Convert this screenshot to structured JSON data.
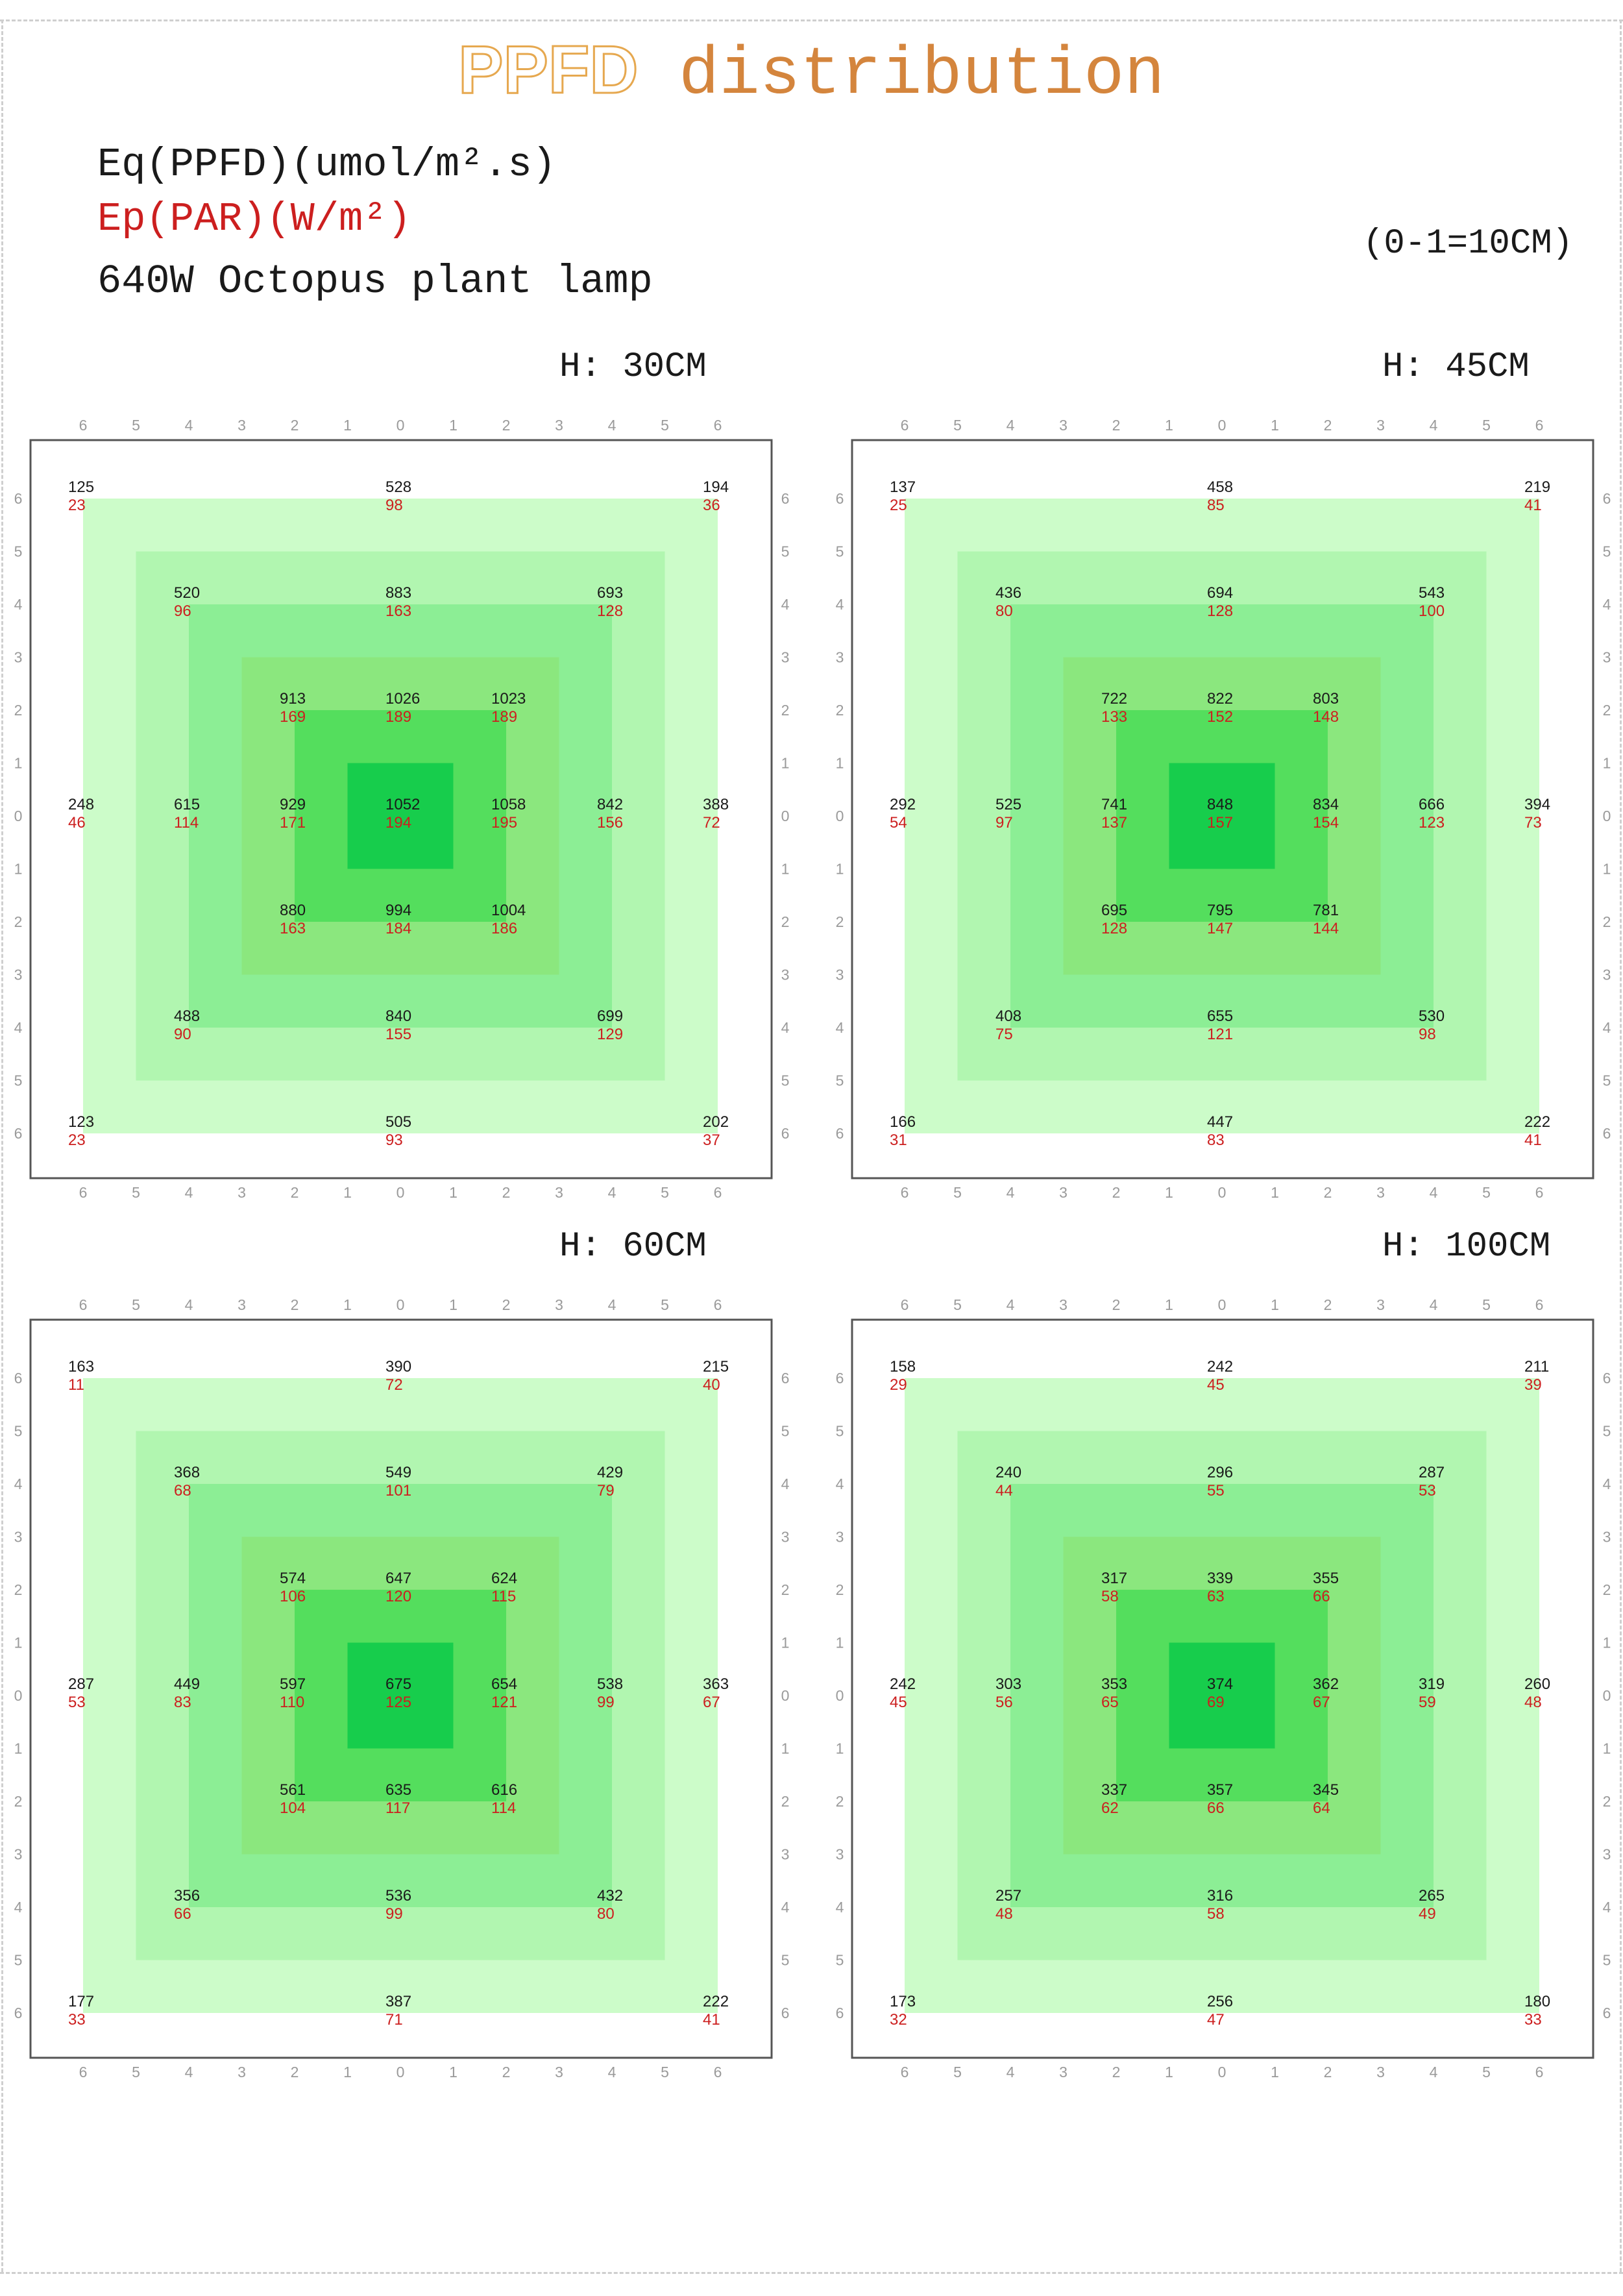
{
  "header": {
    "title_part1": "PPFD",
    "title_part2": " distribution",
    "line_ppfd": "Eq(PPFD)(umol/m².s)",
    "line_par": "Ep(PAR)(W/m²)",
    "line_lamp": "640W Octopus plant lamp",
    "scale_note": "(0-1=10CM)"
  },
  "colors": {
    "title_outline": "#e6a84f",
    "title_text": "#d4853d",
    "ppfd_text": "#1a1a1a",
    "par_text": "#cc1f1f",
    "ring_colors": [
      "#ccfcc9",
      "#b1f6b0",
      "#8cee95",
      "#8be77e",
      "#54de5d",
      "#17cd4c"
    ]
  },
  "chart_data": [
    {
      "type": "heatmap",
      "title": "H: 30CM",
      "x_tick_labels": [
        "6",
        "5",
        "4",
        "3",
        "2",
        "1",
        "0",
        "1",
        "2",
        "3",
        "4",
        "5",
        "6"
      ],
      "y_tick_labels": [
        "6",
        "5",
        "4",
        "3",
        "2",
        "1",
        "0",
        "1",
        "2",
        "3",
        "4",
        "5",
        "6"
      ],
      "points": [
        {
          "x": -6,
          "y": 6,
          "ppfd": 125,
          "par": 23
        },
        {
          "x": 0,
          "y": 6,
          "ppfd": 528,
          "par": 98
        },
        {
          "x": 6,
          "y": 6,
          "ppfd": 194,
          "par": 36
        },
        {
          "x": -4,
          "y": 4,
          "ppfd": 520,
          "par": 96
        },
        {
          "x": 0,
          "y": 4,
          "ppfd": 883,
          "par": 163
        },
        {
          "x": 4,
          "y": 4,
          "ppfd": 693,
          "par": 128
        },
        {
          "x": -2,
          "y": 2,
          "ppfd": 913,
          "par": 169
        },
        {
          "x": 0,
          "y": 2,
          "ppfd": 1026,
          "par": 189
        },
        {
          "x": 2,
          "y": 2,
          "ppfd": 1023,
          "par": 189
        },
        {
          "x": -6,
          "y": 0,
          "ppfd": 248,
          "par": 46
        },
        {
          "x": -4,
          "y": 0,
          "ppfd": 615,
          "par": 114
        },
        {
          "x": -2,
          "y": 0,
          "ppfd": 929,
          "par": 171
        },
        {
          "x": 0,
          "y": 0,
          "ppfd": 1052,
          "par": 194
        },
        {
          "x": 2,
          "y": 0,
          "ppfd": 1058,
          "par": 195
        },
        {
          "x": 4,
          "y": 0,
          "ppfd": 842,
          "par": 156
        },
        {
          "x": 6,
          "y": 0,
          "ppfd": 388,
          "par": 72
        },
        {
          "x": -2,
          "y": -2,
          "ppfd": 880,
          "par": 163
        },
        {
          "x": 0,
          "y": -2,
          "ppfd": 994,
          "par": 184
        },
        {
          "x": 2,
          "y": -2,
          "ppfd": 1004,
          "par": 186
        },
        {
          "x": -4,
          "y": -4,
          "ppfd": 488,
          "par": 90
        },
        {
          "x": 0,
          "y": -4,
          "ppfd": 840,
          "par": 155
        },
        {
          "x": 4,
          "y": -4,
          "ppfd": 699,
          "par": 129
        },
        {
          "x": -6,
          "y": -6,
          "ppfd": 123,
          "par": 23
        },
        {
          "x": 0,
          "y": -6,
          "ppfd": 505,
          "par": 93
        },
        {
          "x": 6,
          "y": -6,
          "ppfd": 202,
          "par": 37
        }
      ]
    },
    {
      "type": "heatmap",
      "title": "H: 45CM",
      "x_tick_labels": [
        "6",
        "5",
        "4",
        "3",
        "2",
        "1",
        "0",
        "1",
        "2",
        "3",
        "4",
        "5",
        "6"
      ],
      "y_tick_labels": [
        "6",
        "5",
        "4",
        "3",
        "2",
        "1",
        "0",
        "1",
        "2",
        "3",
        "4",
        "5",
        "6"
      ],
      "points": [
        {
          "x": -6,
          "y": 6,
          "ppfd": 137,
          "par": 25
        },
        {
          "x": 0,
          "y": 6,
          "ppfd": 458,
          "par": 85
        },
        {
          "x": 6,
          "y": 6,
          "ppfd": 219,
          "par": 41
        },
        {
          "x": -4,
          "y": 4,
          "ppfd": 436,
          "par": 80
        },
        {
          "x": 0,
          "y": 4,
          "ppfd": 694,
          "par": 128
        },
        {
          "x": 4,
          "y": 4,
          "ppfd": 543,
          "par": 100
        },
        {
          "x": -2,
          "y": 2,
          "ppfd": 722,
          "par": 133
        },
        {
          "x": 0,
          "y": 2,
          "ppfd": 822,
          "par": 152
        },
        {
          "x": 2,
          "y": 2,
          "ppfd": 803,
          "par": 148
        },
        {
          "x": -6,
          "y": 0,
          "ppfd": 292,
          "par": 54
        },
        {
          "x": -4,
          "y": 0,
          "ppfd": 525,
          "par": 97
        },
        {
          "x": -2,
          "y": 0,
          "ppfd": 741,
          "par": 137
        },
        {
          "x": 0,
          "y": 0,
          "ppfd": 848,
          "par": 157
        },
        {
          "x": 2,
          "y": 0,
          "ppfd": 834,
          "par": 154
        },
        {
          "x": 4,
          "y": 0,
          "ppfd": 666,
          "par": 123
        },
        {
          "x": 6,
          "y": 0,
          "ppfd": 394,
          "par": 73
        },
        {
          "x": -2,
          "y": -2,
          "ppfd": 695,
          "par": 128
        },
        {
          "x": 0,
          "y": -2,
          "ppfd": 795,
          "par": 147
        },
        {
          "x": 2,
          "y": -2,
          "ppfd": 781,
          "par": 144
        },
        {
          "x": -4,
          "y": -4,
          "ppfd": 408,
          "par": 75
        },
        {
          "x": 0,
          "y": -4,
          "ppfd": 655,
          "par": 121
        },
        {
          "x": 4,
          "y": -4,
          "ppfd": 530,
          "par": 98
        },
        {
          "x": -6,
          "y": -6,
          "ppfd": 166,
          "par": 31
        },
        {
          "x": 0,
          "y": -6,
          "ppfd": 447,
          "par": 83
        },
        {
          "x": 6,
          "y": -6,
          "ppfd": 222,
          "par": 41
        }
      ]
    },
    {
      "type": "heatmap",
      "title": "H: 60CM",
      "x_tick_labels": [
        "6",
        "5",
        "4",
        "3",
        "2",
        "1",
        "0",
        "1",
        "2",
        "3",
        "4",
        "5",
        "6"
      ],
      "y_tick_labels": [
        "6",
        "5",
        "4",
        "3",
        "2",
        "1",
        "0",
        "1",
        "2",
        "3",
        "4",
        "5",
        "6"
      ],
      "points": [
        {
          "x": -6,
          "y": 6,
          "ppfd": 163,
          "par": 11
        },
        {
          "x": 0,
          "y": 6,
          "ppfd": 390,
          "par": 72
        },
        {
          "x": 6,
          "y": 6,
          "ppfd": 215,
          "par": 40
        },
        {
          "x": -4,
          "y": 4,
          "ppfd": 368,
          "par": 68
        },
        {
          "x": 0,
          "y": 4,
          "ppfd": 549,
          "par": 101
        },
        {
          "x": 4,
          "y": 4,
          "ppfd": 429,
          "par": 79
        },
        {
          "x": -2,
          "y": 2,
          "ppfd": 574,
          "par": 106
        },
        {
          "x": 0,
          "y": 2,
          "ppfd": 647,
          "par": 120
        },
        {
          "x": 2,
          "y": 2,
          "ppfd": 624,
          "par": 115
        },
        {
          "x": -6,
          "y": 0,
          "ppfd": 287,
          "par": 53
        },
        {
          "x": -4,
          "y": 0,
          "ppfd": 449,
          "par": 83
        },
        {
          "x": -2,
          "y": 0,
          "ppfd": 597,
          "par": 110
        },
        {
          "x": 0,
          "y": 0,
          "ppfd": 675,
          "par": 125
        },
        {
          "x": 2,
          "y": 0,
          "ppfd": 654,
          "par": 121
        },
        {
          "x": 4,
          "y": 0,
          "ppfd": 538,
          "par": 99
        },
        {
          "x": 6,
          "y": 0,
          "ppfd": 363,
          "par": 67
        },
        {
          "x": -2,
          "y": -2,
          "ppfd": 561,
          "par": 104
        },
        {
          "x": 0,
          "y": -2,
          "ppfd": 635,
          "par": 117
        },
        {
          "x": 2,
          "y": -2,
          "ppfd": 616,
          "par": 114
        },
        {
          "x": -4,
          "y": -4,
          "ppfd": 356,
          "par": 66
        },
        {
          "x": 0,
          "y": -4,
          "ppfd": 536,
          "par": 99
        },
        {
          "x": 4,
          "y": -4,
          "ppfd": 432,
          "par": 80
        },
        {
          "x": -6,
          "y": -6,
          "ppfd": 177,
          "par": 33
        },
        {
          "x": 0,
          "y": -6,
          "ppfd": 387,
          "par": 71
        },
        {
          "x": 6,
          "y": -6,
          "ppfd": 222,
          "par": 41
        }
      ]
    },
    {
      "type": "heatmap",
      "title": "H: 100CM",
      "x_tick_labels": [
        "6",
        "5",
        "4",
        "3",
        "2",
        "1",
        "0",
        "1",
        "2",
        "3",
        "4",
        "5",
        "6"
      ],
      "y_tick_labels": [
        "6",
        "5",
        "4",
        "3",
        "2",
        "1",
        "0",
        "1",
        "2",
        "3",
        "4",
        "5",
        "6"
      ],
      "points": [
        {
          "x": -6,
          "y": 6,
          "ppfd": 158,
          "par": 29
        },
        {
          "x": 0,
          "y": 6,
          "ppfd": 242,
          "par": 45
        },
        {
          "x": 6,
          "y": 6,
          "ppfd": 211,
          "par": 39
        },
        {
          "x": -4,
          "y": 4,
          "ppfd": 240,
          "par": 44
        },
        {
          "x": 0,
          "y": 4,
          "ppfd": 296,
          "par": 55
        },
        {
          "x": 4,
          "y": 4,
          "ppfd": 287,
          "par": 53
        },
        {
          "x": -2,
          "y": 2,
          "ppfd": 317,
          "par": 58
        },
        {
          "x": 0,
          "y": 2,
          "ppfd": 339,
          "par": 63
        },
        {
          "x": 2,
          "y": 2,
          "ppfd": 355,
          "par": 66
        },
        {
          "x": -6,
          "y": 0,
          "ppfd": 242,
          "par": 45
        },
        {
          "x": -4,
          "y": 0,
          "ppfd": 303,
          "par": 56
        },
        {
          "x": -2,
          "y": 0,
          "ppfd": 353,
          "par": 65
        },
        {
          "x": 0,
          "y": 0,
          "ppfd": 374,
          "par": 69
        },
        {
          "x": 2,
          "y": 0,
          "ppfd": 362,
          "par": 67
        },
        {
          "x": 4,
          "y": 0,
          "ppfd": 319,
          "par": 59
        },
        {
          "x": 6,
          "y": 0,
          "ppfd": 260,
          "par": 48
        },
        {
          "x": -2,
          "y": -2,
          "ppfd": 337,
          "par": 62
        },
        {
          "x": 0,
          "y": -2,
          "ppfd": 357,
          "par": 66
        },
        {
          "x": 2,
          "y": -2,
          "ppfd": 345,
          "par": 64
        },
        {
          "x": -4,
          "y": -4,
          "ppfd": 257,
          "par": 48
        },
        {
          "x": 0,
          "y": -4,
          "ppfd": 316,
          "par": 58
        },
        {
          "x": 4,
          "y": -4,
          "ppfd": 265,
          "par": 49
        },
        {
          "x": -6,
          "y": -6,
          "ppfd": 173,
          "par": 32
        },
        {
          "x": 0,
          "y": -6,
          "ppfd": 256,
          "par": 47
        },
        {
          "x": 6,
          "y": -6,
          "ppfd": 180,
          "par": 33
        }
      ]
    }
  ]
}
